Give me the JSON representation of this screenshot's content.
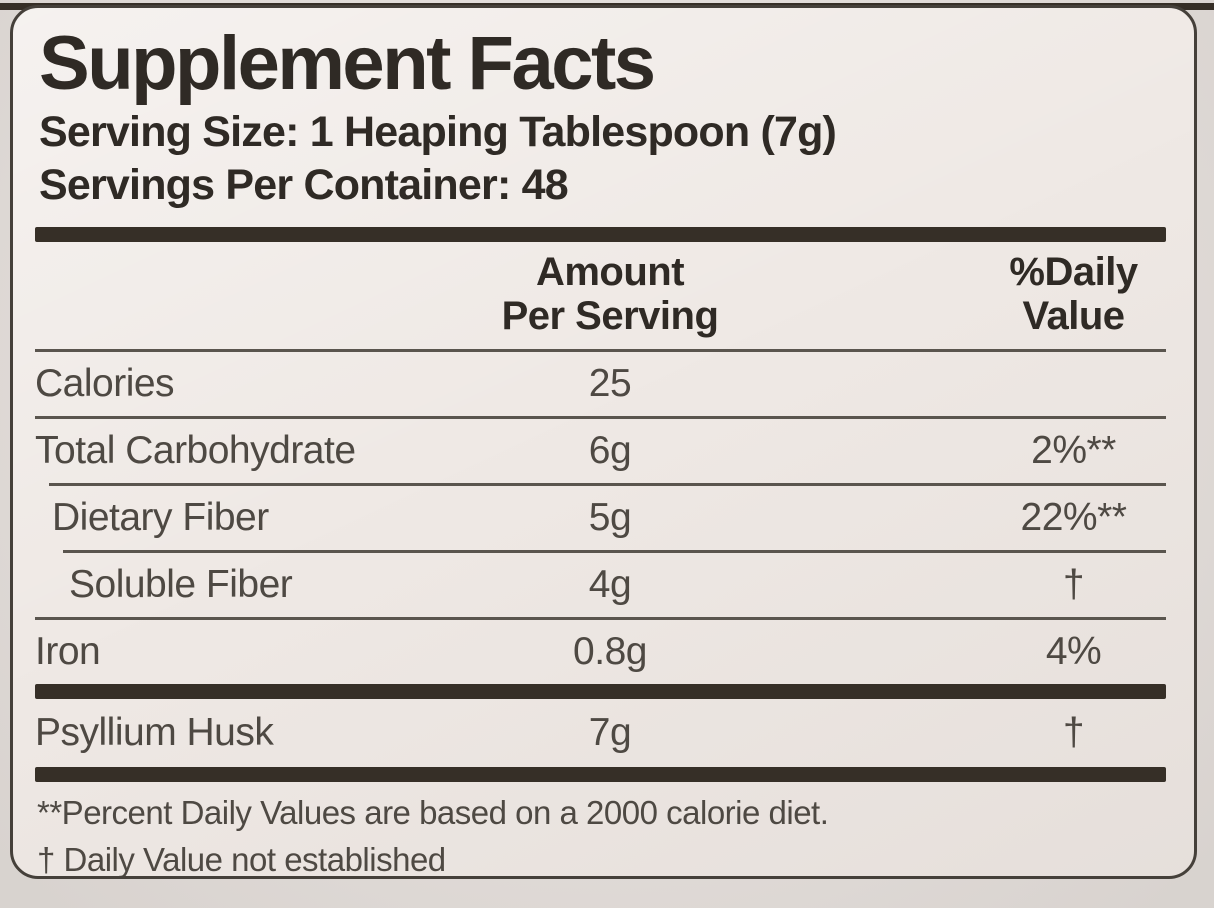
{
  "panel": {
    "title": "Supplement Facts",
    "serving_size": "Serving Size: 1 Heaping Tablespoon (7g)",
    "servings_per_container": "Servings Per Container: 48",
    "columns": {
      "amount_line1": "Amount",
      "amount_line2": "Per Serving",
      "dv_line1": "%Daily",
      "dv_line2": "Value"
    },
    "rows": [
      {
        "name": "Calories",
        "amount": "25",
        "dv": "",
        "indent": 0,
        "divider_after": "thin",
        "divider_indent": 0
      },
      {
        "name": "Total Carbohydrate",
        "amount": "6g",
        "dv": "2%**",
        "indent": 0,
        "divider_after": "thin",
        "divider_indent": 14
      },
      {
        "name": "Dietary Fiber",
        "amount": "5g",
        "dv": "22%**",
        "indent": 1,
        "divider_after": "thin",
        "divider_indent": 28
      },
      {
        "name": "Soluble Fiber",
        "amount": "4g",
        "dv": "†",
        "indent": 2,
        "divider_after": "thin",
        "divider_indent": 0
      },
      {
        "name": "Iron",
        "amount": "0.8g",
        "dv": "4%",
        "indent": 0,
        "divider_after": "thick",
        "divider_indent": 0
      },
      {
        "name": "Psyllium Husk",
        "amount": "7g",
        "dv": "†",
        "indent": 0,
        "divider_after": "thick",
        "divider_indent": 0
      }
    ],
    "footnotes": [
      "**Percent Daily Values are based on a 2000 calorie diet.",
      "† Daily Value not established"
    ],
    "colors": {
      "outside_bg": "#e6e0dc",
      "card_bg": "#efe9e5",
      "border": "#45403a",
      "ink": "#2f2a25",
      "row_ink": "#4e4943",
      "rule": "#5a554e",
      "bar": "#362f27"
    }
  }
}
